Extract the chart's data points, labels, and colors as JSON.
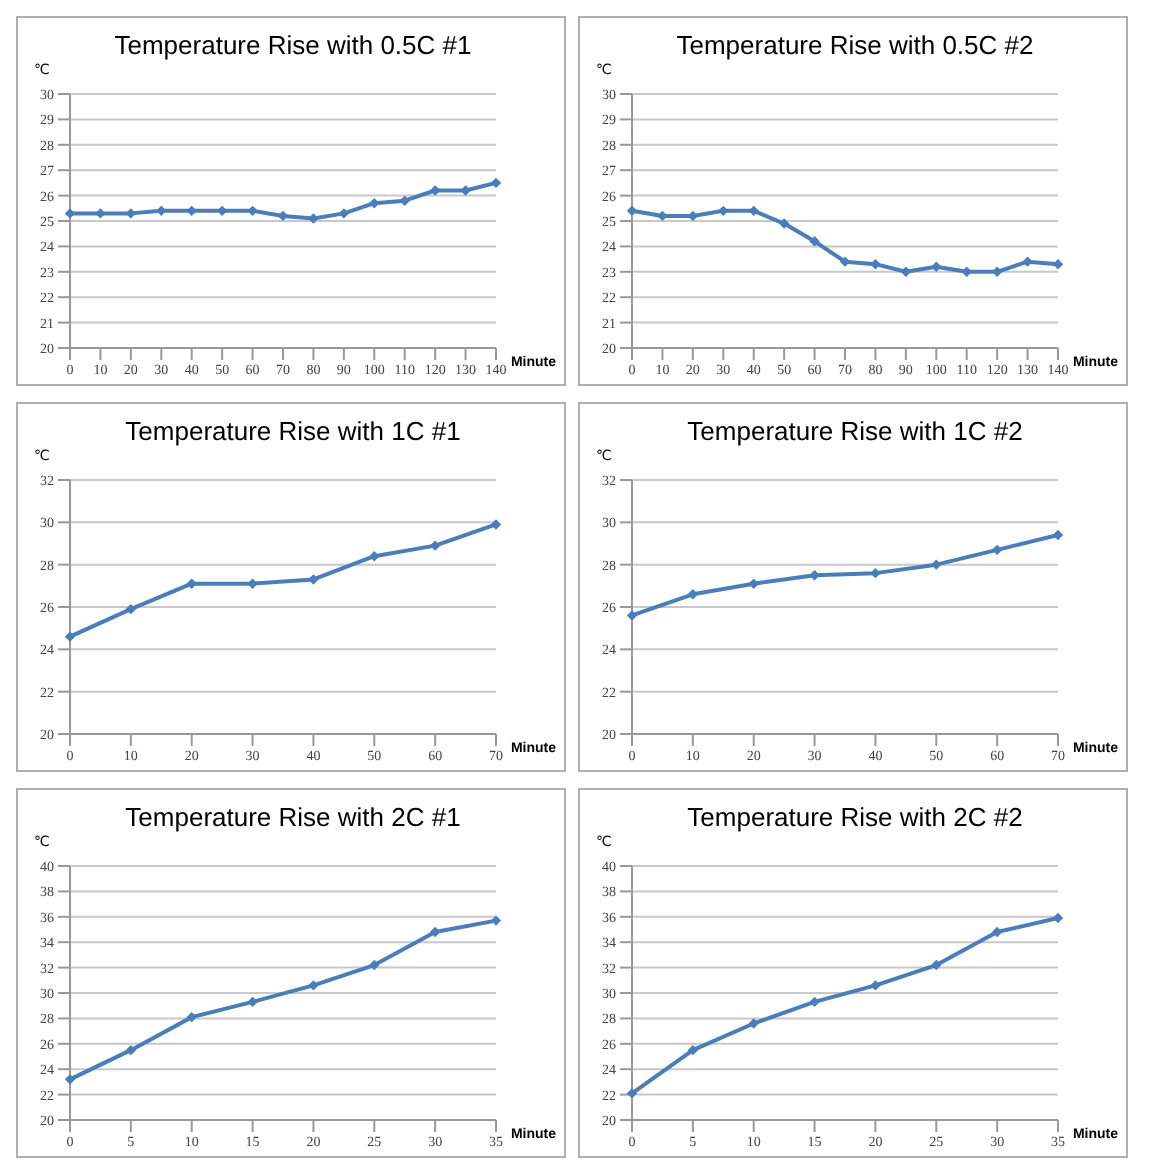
{
  "chart_data": [
    {
      "type": "line",
      "title": "Temperature  Rise with 0.5C #1",
      "xlabel": "Minute",
      "ylabel": "℃",
      "categories": [
        "0",
        "10",
        "20",
        "30",
        "40",
        "50",
        "60",
        "70",
        "80",
        "90",
        "100",
        "110",
        "120",
        "130",
        "140"
      ],
      "series": [
        {
          "color": "#4a7ebb",
          "values": [
            25.3,
            25.3,
            25.3,
            25.4,
            25.4,
            25.4,
            25.4,
            25.2,
            25.1,
            25.3,
            25.7,
            25.8,
            26.2,
            26.2,
            26.5
          ]
        }
      ],
      "ylim": [
        20,
        30
      ],
      "yticks": [
        20,
        21,
        22,
        23,
        24,
        25,
        26,
        27,
        28,
        29,
        30
      ],
      "grid": "y",
      "legend": false,
      "marker": "diamond"
    },
    {
      "type": "line",
      "title": "Temperature  Rise with 0.5C #2",
      "xlabel": "Minute",
      "ylabel": "℃",
      "categories": [
        "0",
        "10",
        "20",
        "30",
        "40",
        "50",
        "60",
        "70",
        "80",
        "90",
        "100",
        "110",
        "120",
        "130",
        "140"
      ],
      "series": [
        {
          "color": "#4a7ebb",
          "values": [
            25.4,
            25.2,
            25.2,
            25.4,
            25.4,
            24.9,
            24.2,
            23.4,
            23.3,
            23.0,
            23.2,
            23.0,
            23.0,
            23.4,
            23.3
          ]
        }
      ],
      "ylim": [
        20,
        30
      ],
      "yticks": [
        20,
        21,
        22,
        23,
        24,
        25,
        26,
        27,
        28,
        29,
        30
      ],
      "grid": "y",
      "legend": false,
      "marker": "diamond"
    },
    {
      "type": "line",
      "title": "Temperature  Rise with 1C #1",
      "xlabel": "Minute",
      "ylabel": "℃",
      "categories": [
        "0",
        "10",
        "20",
        "30",
        "40",
        "50",
        "60",
        "70"
      ],
      "series": [
        {
          "color": "#4a7ebb",
          "values": [
            24.6,
            25.9,
            27.1,
            27.1,
            27.3,
            28.4,
            28.9,
            29.9
          ]
        }
      ],
      "ylim": [
        20,
        32
      ],
      "yticks": [
        20,
        22,
        24,
        26,
        28,
        30,
        32
      ],
      "grid": "y",
      "legend": false,
      "marker": "diamond"
    },
    {
      "type": "line",
      "title": "Temperature  Rise with 1C #2",
      "xlabel": "Minute",
      "ylabel": "℃",
      "categories": [
        "0",
        "10",
        "20",
        "30",
        "40",
        "50",
        "60",
        "70"
      ],
      "series": [
        {
          "color": "#4a7ebb",
          "values": [
            25.6,
            26.6,
            27.1,
            27.5,
            27.6,
            28.0,
            28.7,
            29.4
          ]
        }
      ],
      "ylim": [
        20,
        32
      ],
      "yticks": [
        20,
        22,
        24,
        26,
        28,
        30,
        32
      ],
      "grid": "y",
      "legend": false,
      "marker": "diamond"
    },
    {
      "type": "line",
      "title": "Temperature  Rise with 2C #1",
      "xlabel": "Minute",
      "ylabel": "℃",
      "categories": [
        "0",
        "5",
        "10",
        "15",
        "20",
        "25",
        "30",
        "35"
      ],
      "series": [
        {
          "color": "#4a7ebb",
          "values": [
            23.2,
            25.5,
            28.1,
            29.3,
            30.6,
            32.2,
            34.8,
            35.7
          ]
        }
      ],
      "ylim": [
        20,
        40
      ],
      "yticks": [
        20,
        22,
        24,
        26,
        28,
        30,
        32,
        34,
        36,
        38,
        40
      ],
      "grid": "y",
      "legend": false,
      "marker": "diamond"
    },
    {
      "type": "line",
      "title": "Temperature  Rise with 2C #2",
      "xlabel": "Minute",
      "ylabel": "℃",
      "categories": [
        "0",
        "5",
        "10",
        "15",
        "20",
        "25",
        "30",
        "35"
      ],
      "series": [
        {
          "color": "#4a7ebb",
          "values": [
            22.1,
            25.5,
            27.6,
            29.3,
            30.6,
            32.2,
            34.8,
            35.9
          ]
        }
      ],
      "ylim": [
        20,
        40
      ],
      "yticks": [
        20,
        22,
        24,
        26,
        28,
        30,
        32,
        34,
        36,
        38,
        40
      ],
      "grid": "y",
      "legend": false,
      "marker": "diamond"
    }
  ]
}
